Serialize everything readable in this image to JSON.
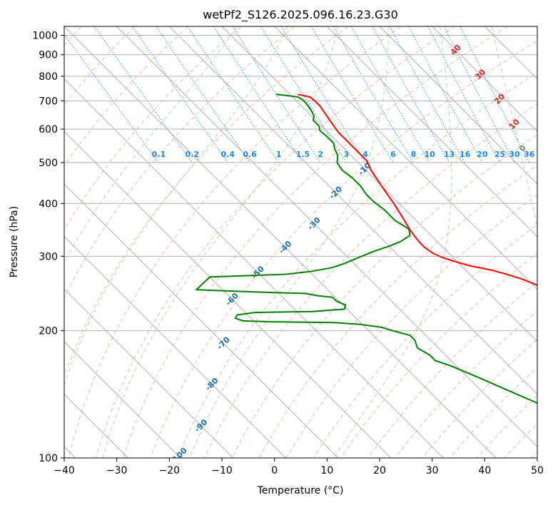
{
  "chart_data": {
    "type": "line",
    "title": "wetPf2_S126.2025.096.16.23.G30",
    "xlabel": "Temperature (°C)",
    "ylabel": "Pressure (hPa)",
    "xlim": [
      -40,
      50
    ],
    "ylim": [
      1050,
      100
    ],
    "yscale": "log",
    "skew": 35,
    "x_ticks": [
      "−40",
      "−30",
      "−20",
      "−10",
      "0",
      "10",
      "20",
      "30",
      "40",
      "50"
    ],
    "x_tick_values": [
      -40,
      -30,
      -20,
      -10,
      0,
      10,
      20,
      30,
      40,
      50
    ],
    "y_ticks": [
      "100",
      "200",
      "300",
      "400",
      "500",
      "600",
      "700",
      "800",
      "900",
      "1000"
    ],
    "y_tick_values": [
      100,
      200,
      300,
      400,
      500,
      600,
      700,
      800,
      900,
      1000
    ],
    "grid": true,
    "colors": {
      "temperature": "#ff0000",
      "dewpoint": "#008000",
      "isotherm": "#b0b0b0",
      "dry_adiabat": "#f4a582",
      "moist_adiabat": "#a6d8a0",
      "mixing_ratio": "#1e88e5",
      "adiabat_label": "#1f6fa5",
      "hot_label": "#d62728",
      "zero_label": "#808080"
    },
    "series": [
      {
        "key": "temperature",
        "points": [
          [
            -8.5,
            725
          ],
          [
            -6.7,
            715
          ],
          [
            -6.5,
            700
          ],
          [
            -6.5,
            680
          ],
          [
            -7,
            650
          ],
          [
            -7.5,
            620
          ],
          [
            -8,
            590
          ],
          [
            -8,
            560
          ],
          [
            -8,
            530
          ],
          [
            -8,
            505
          ],
          [
            -9,
            480
          ],
          [
            -10,
            440
          ],
          [
            -11,
            400
          ],
          [
            -12,
            370
          ],
          [
            -13,
            345
          ],
          [
            -13.5,
            325
          ],
          [
            -13.5,
            315
          ],
          [
            -13,
            305
          ],
          [
            -12,
            298
          ],
          [
            -10,
            290
          ],
          [
            -8,
            284
          ],
          [
            -5,
            278
          ],
          [
            -3,
            272
          ],
          [
            -1,
            265
          ],
          [
            1,
            255
          ],
          [
            2,
            248
          ],
          [
            3,
            240
          ],
          [
            4,
            232
          ],
          [
            6,
            220
          ],
          [
            8,
            208
          ],
          [
            10,
            195
          ],
          [
            11.5,
            180
          ],
          [
            13,
            165
          ],
          [
            15,
            150
          ],
          [
            16.5,
            140
          ],
          [
            17.5,
            130
          ],
          [
            19,
            120
          ],
          [
            20.5,
            110
          ],
          [
            22,
            103
          ],
          [
            23,
            100
          ]
        ]
      },
      {
        "key": "dewpoint",
        "points": [
          [
            -12.6,
            725
          ],
          [
            -11.4,
            722
          ],
          [
            -9,
            715
          ],
          [
            -8.6,
            705
          ],
          [
            -8.6,
            690
          ],
          [
            -9,
            665
          ],
          [
            -9.5,
            645
          ],
          [
            -10.5,
            630
          ],
          [
            -10.5,
            610
          ],
          [
            -11.2,
            595
          ],
          [
            -11,
            575
          ],
          [
            -11,
            555
          ],
          [
            -11.8,
            540
          ],
          [
            -12.5,
            520
          ],
          [
            -14,
            500
          ],
          [
            -14.5,
            480
          ],
          [
            -14,
            460
          ],
          [
            -14,
            440
          ],
          [
            -14.5,
            420
          ],
          [
            -14.5,
            405
          ],
          [
            -14,
            385
          ],
          [
            -14,
            365
          ],
          [
            -13,
            348
          ],
          [
            -14,
            336
          ],
          [
            -17,
            325
          ],
          [
            -20,
            317
          ],
          [
            -24,
            308
          ],
          [
            -28,
            298
          ],
          [
            -32,
            288
          ],
          [
            -35,
            282
          ],
          [
            -40,
            276
          ],
          [
            -45,
            272
          ],
          [
            -60,
            268
          ],
          [
            -65,
            250
          ],
          [
            -58,
            248
          ],
          [
            -50,
            246
          ],
          [
            -45,
            245
          ],
          [
            -43,
            242
          ],
          [
            -40.5,
            240
          ],
          [
            -40.5,
            235
          ],
          [
            -39.5,
            230
          ],
          [
            -40.5,
            225
          ],
          [
            -47,
            222
          ],
          [
            -58,
            221
          ],
          [
            -62,
            218
          ],
          [
            -63,
            214
          ],
          [
            -62,
            211
          ],
          [
            -57,
            210
          ],
          [
            -45,
            209
          ],
          [
            -40.5,
            207
          ],
          [
            -37,
            204
          ],
          [
            -35,
            199
          ],
          [
            -33,
            195
          ],
          [
            -33,
            190
          ],
          [
            -34,
            182
          ],
          [
            -33,
            175
          ],
          [
            -33,
            170
          ],
          [
            -31,
            165
          ],
          [
            -28,
            155
          ],
          [
            -25,
            145
          ],
          [
            -20,
            130
          ],
          [
            -15,
            117
          ],
          [
            -8,
            100
          ]
        ]
      }
    ],
    "dry_adiabats_C": [
      -40,
      -30,
      -20,
      -10,
      0,
      10,
      20,
      30,
      40,
      50,
      60,
      70,
      80,
      90,
      100,
      110,
      120,
      130,
      140,
      150,
      160,
      170,
      180,
      190,
      200,
      210,
      220,
      230,
      240,
      250,
      260,
      270,
      280
    ],
    "moist_adiabats_C": [
      -10,
      0,
      10,
      20,
      30,
      40
    ],
    "mixing_ratios_gkg": [
      0.1,
      0.2,
      0.4,
      0.6,
      1,
      1.5,
      2,
      3,
      4,
      6,
      8,
      10,
      13,
      16,
      20,
      25,
      30,
      36
    ],
    "mixing_ratio_labels": [
      "0.1",
      "0.2",
      "0.4",
      "0.6",
      "1",
      "1.5",
      "2",
      "3",
      "4",
      "6",
      "8",
      "10",
      "13",
      "16",
      "20",
      "25",
      "30",
      "36"
    ],
    "adiabat_labels": [
      {
        "text": "-100",
        "p": 100
      },
      {
        "text": "-90",
        "p": 118
      },
      {
        "text": "-80",
        "p": 148
      },
      {
        "text": "-70",
        "p": 185
      },
      {
        "text": "-60",
        "p": 235
      },
      {
        "text": "-50",
        "p": 272
      },
      {
        "text": "-40",
        "p": 312
      },
      {
        "text": "-30",
        "p": 355
      },
      {
        "text": "-20",
        "p": 420
      },
      {
        "text": "-10",
        "p": 478
      }
    ],
    "moist_labels": [
      {
        "text": "0",
        "t": 24,
        "p": 535
      },
      {
        "text": "10",
        "t": 27,
        "p": 610
      },
      {
        "text": "20",
        "t": 29,
        "p": 700
      },
      {
        "text": "30",
        "t": 30,
        "p": 800
      },
      {
        "text": "40",
        "t": 30,
        "p": 915
      }
    ]
  }
}
